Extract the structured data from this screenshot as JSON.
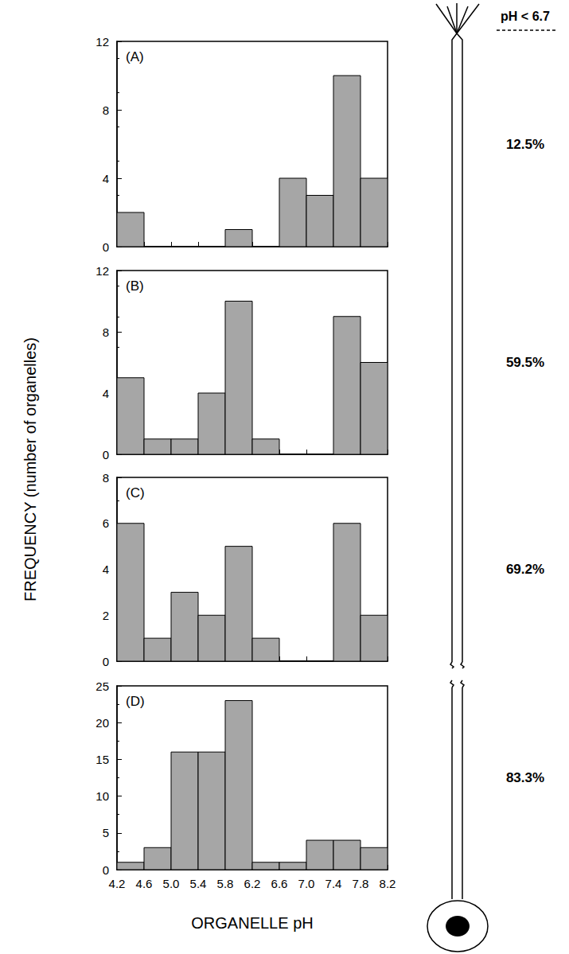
{
  "xlabel": "ORGANELLE pH",
  "ylabel": "FREQUENCY (number of organelles)",
  "header": "pH < 6.7",
  "chart_data": [
    {
      "type": "histogram",
      "title": "(A)",
      "annotation": "12.5%",
      "bins": [
        4.2,
        4.6,
        5.0,
        5.4,
        5.8,
        6.2,
        6.6,
        7.0,
        7.4,
        7.8,
        8.2
      ],
      "values": [
        2,
        0,
        0,
        0,
        1,
        0,
        4,
        3,
        10,
        4
      ],
      "color": "#a6a6a6",
      "xlim": [
        4.2,
        8.2
      ],
      "xticks": [
        4.2,
        4.6,
        {
          "value": 5.0,
          "label": "5.0"
        },
        5.4,
        5.8,
        6.2,
        6.6,
        {
          "value": 7.0,
          "label": "7.0"
        },
        7.4,
        7.8,
        8.2
      ],
      "ylim": [
        0,
        12
      ],
      "yticks": [
        0,
        4,
        8,
        12
      ],
      "grid": false,
      "tick_labels": "y"
    },
    {
      "type": "histogram",
      "title": "(B)",
      "annotation": "59.5%",
      "bins": [
        4.2,
        4.6,
        5.0,
        5.4,
        5.8,
        6.2,
        6.6,
        7.0,
        7.4,
        7.8,
        8.2
      ],
      "values": [
        5,
        1,
        1,
        4,
        10,
        1,
        0,
        0,
        9,
        6
      ],
      "color": "#a6a6a6",
      "xlim": [
        4.2,
        8.2
      ],
      "xticks": [
        4.2,
        4.6,
        {
          "value": 5.0,
          "label": "5.0"
        },
        5.4,
        5.8,
        6.2,
        6.6,
        {
          "value": 7.0,
          "label": "7.0"
        },
        7.4,
        7.8,
        8.2
      ],
      "ylim": [
        0,
        12
      ],
      "yticks": [
        0,
        4,
        8,
        12
      ],
      "grid": false,
      "tick_labels": "y"
    },
    {
      "type": "histogram",
      "title": "(C)",
      "annotation": "69.2%",
      "bins": [
        4.2,
        4.6,
        5.0,
        5.4,
        5.8,
        6.2,
        6.6,
        7.0,
        7.4,
        7.8,
        8.2
      ],
      "values": [
        6,
        1,
        3,
        2,
        5,
        1,
        0,
        0,
        6,
        2
      ],
      "color": "#a6a6a6",
      "xlim": [
        4.2,
        8.2
      ],
      "xticks": [
        4.2,
        4.6,
        {
          "value": 5.0,
          "label": "5.0"
        },
        5.4,
        5.8,
        6.2,
        6.6,
        {
          "value": 7.0,
          "label": "7.0"
        },
        7.4,
        7.8,
        8.2
      ],
      "ylim": [
        0,
        8
      ],
      "yticks": [
        0,
        2,
        4,
        6,
        8
      ],
      "grid": false,
      "tick_labels": "y"
    },
    {
      "type": "histogram",
      "title": "(D)",
      "annotation": "83.3%",
      "bins": [
        4.2,
        4.6,
        5.0,
        5.4,
        5.8,
        6.2,
        6.6,
        7.0,
        7.4,
        7.8,
        8.2
      ],
      "values": [
        1,
        3,
        16,
        16,
        23,
        1,
        1,
        4,
        4,
        3
      ],
      "color": "#a6a6a6",
      "xlim": [
        4.2,
        8.2
      ],
      "xticks": [
        4.2,
        4.6,
        {
          "value": 5.0,
          "label": "5.0"
        },
        5.4,
        5.8,
        6.2,
        6.6,
        {
          "value": 7.0,
          "label": "7.0"
        },
        7.4,
        7.8,
        8.2
      ],
      "ylim": [
        0,
        25
      ],
      "yticks": [
        0,
        5,
        10,
        15,
        20,
        25
      ],
      "grid": false
    }
  ]
}
